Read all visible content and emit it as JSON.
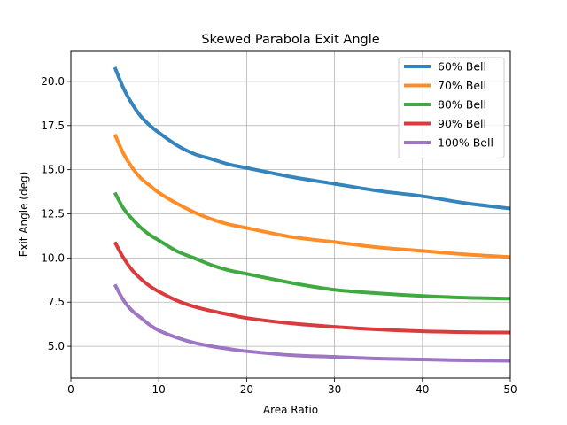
{
  "chart_data": {
    "type": "line",
    "title": "Skewed Parabola Exit Angle",
    "xlabel": "Area Ratio",
    "ylabel": "Exit Angle (deg)",
    "xlim": [
      0,
      50
    ],
    "ylim": [
      3.2,
      21.7
    ],
    "xticks": [
      0,
      10,
      20,
      30,
      40,
      50
    ],
    "xtick_labels": [
      "0",
      "10",
      "20",
      "30",
      "40",
      "50"
    ],
    "yticks": [
      5.0,
      7.5,
      10.0,
      12.5,
      15.0,
      17.5,
      20.0
    ],
    "ytick_labels": [
      "5.0",
      "7.5",
      "10.0",
      "12.5",
      "15.0",
      "17.5",
      "20.0"
    ],
    "grid": true,
    "legend_position": "top-right",
    "x": [
      5,
      6,
      7,
      8,
      9,
      10,
      12,
      14,
      16,
      18,
      20,
      25,
      30,
      35,
      40,
      45,
      50
    ],
    "series": [
      {
        "name": "60% Bell",
        "color": "#1f77b4",
        "values": [
          20.8,
          19.6,
          18.7,
          18.0,
          17.5,
          17.1,
          16.4,
          15.9,
          15.6,
          15.3,
          15.1,
          14.6,
          14.2,
          13.8,
          13.5,
          13.1,
          12.8
        ]
      },
      {
        "name": "70% Bell",
        "color": "#ff7f0e",
        "values": [
          17.0,
          15.9,
          15.1,
          14.5,
          14.1,
          13.7,
          13.1,
          12.6,
          12.2,
          11.9,
          11.7,
          11.2,
          10.9,
          10.6,
          10.4,
          10.2,
          10.05
        ]
      },
      {
        "name": "80% Bell",
        "color": "#2ca02c",
        "values": [
          13.7,
          12.8,
          12.2,
          11.7,
          11.3,
          11.0,
          10.4,
          10.0,
          9.6,
          9.3,
          9.1,
          8.6,
          8.2,
          8.0,
          7.85,
          7.75,
          7.7
        ]
      },
      {
        "name": "90% Bell",
        "color": "#d62728",
        "values": [
          10.9,
          10.0,
          9.3,
          8.8,
          8.4,
          8.1,
          7.6,
          7.25,
          7.0,
          6.8,
          6.6,
          6.3,
          6.1,
          5.95,
          5.85,
          5.8,
          5.78
        ]
      },
      {
        "name": "100% Bell",
        "color": "#9467bd",
        "values": [
          8.5,
          7.6,
          7.0,
          6.6,
          6.2,
          5.9,
          5.5,
          5.2,
          5.0,
          4.85,
          4.72,
          4.5,
          4.4,
          4.3,
          4.25,
          4.2,
          4.18
        ]
      }
    ]
  }
}
